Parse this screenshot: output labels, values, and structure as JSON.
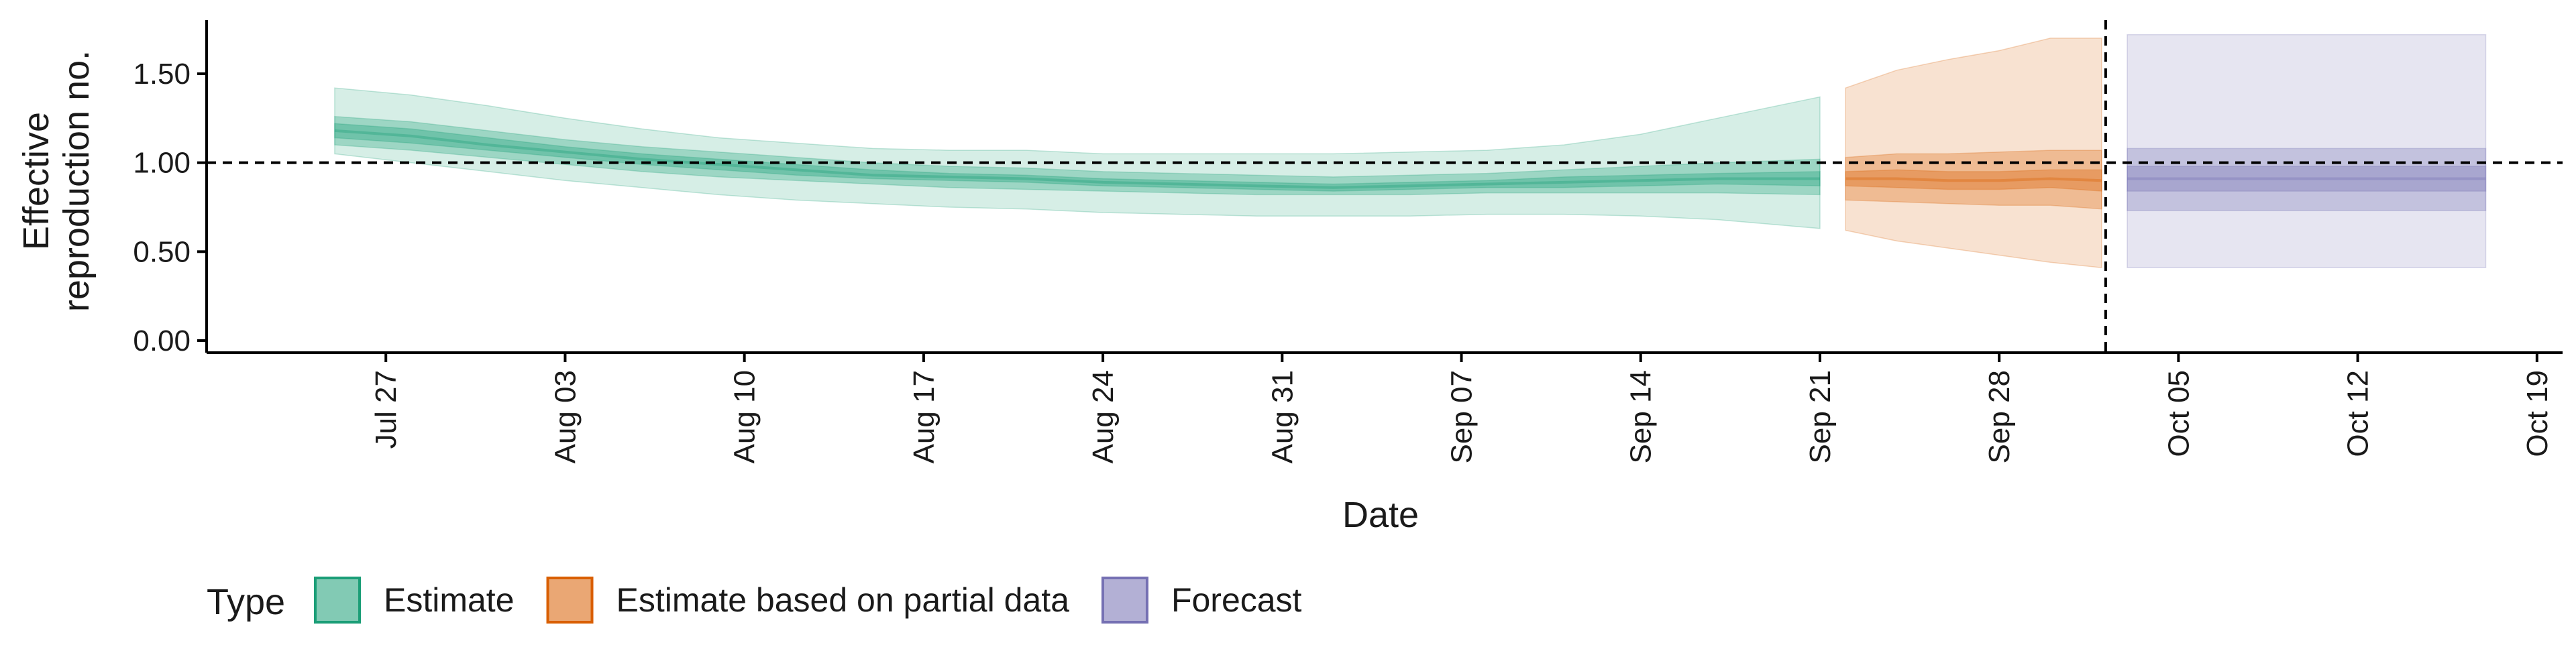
{
  "chart_data": {
    "type": "area",
    "title": "",
    "xlabel": "Date",
    "ylabel": "Effective reproduction no.",
    "ylim": [
      0,
      1.8
    ],
    "y_ticks": [
      "0.00",
      "0.50",
      "1.00",
      "1.50"
    ],
    "x_ticks": [
      {
        "date": "2020-07-27",
        "label": "Jul 27"
      },
      {
        "date": "2020-08-03",
        "label": "Aug 03"
      },
      {
        "date": "2020-08-10",
        "label": "Aug 10"
      },
      {
        "date": "2020-08-17",
        "label": "Aug 17"
      },
      {
        "date": "2020-08-24",
        "label": "Aug 24"
      },
      {
        "date": "2020-08-31",
        "label": "Aug 31"
      },
      {
        "date": "2020-09-07",
        "label": "Sep 07"
      },
      {
        "date": "2020-09-14",
        "label": "Sep 14"
      },
      {
        "date": "2020-09-21",
        "label": "Sep 21"
      },
      {
        "date": "2020-09-28",
        "label": "Sep 28"
      },
      {
        "date": "2020-10-05",
        "label": "Oct 05"
      },
      {
        "date": "2020-10-12",
        "label": "Oct 12"
      },
      {
        "date": "2020-10-19",
        "label": "Oct 19"
      }
    ],
    "reference_line_y": 1.0,
    "forecast_start_date": "2020-10-02",
    "legend": {
      "title": "Type",
      "position": "bottom-left"
    },
    "series": [
      {
        "name": "Estimate",
        "color": "#1b9e77",
        "x": [
          "2020-07-25",
          "2020-07-28",
          "2020-07-31",
          "2020-08-03",
          "2020-08-06",
          "2020-08-09",
          "2020-08-12",
          "2020-08-15",
          "2020-08-18",
          "2020-08-21",
          "2020-08-24",
          "2020-08-27",
          "2020-08-30",
          "2020-09-02",
          "2020-09-05",
          "2020-09-08",
          "2020-09-11",
          "2020-09-14",
          "2020-09-17",
          "2020-09-21"
        ],
        "median": [
          1.18,
          1.15,
          1.1,
          1.06,
          1.02,
          0.99,
          0.96,
          0.93,
          0.92,
          0.91,
          0.89,
          0.88,
          0.87,
          0.86,
          0.87,
          0.88,
          0.89,
          0.9,
          0.91,
          0.91
        ],
        "lower20": [
          1.14,
          1.11,
          1.07,
          1.03,
          0.99,
          0.96,
          0.93,
          0.91,
          0.9,
          0.89,
          0.87,
          0.86,
          0.85,
          0.84,
          0.85,
          0.86,
          0.86,
          0.87,
          0.88,
          0.87
        ],
        "upper20": [
          1.22,
          1.19,
          1.14,
          1.09,
          1.05,
          1.02,
          0.99,
          0.96,
          0.94,
          0.93,
          0.91,
          0.9,
          0.89,
          0.88,
          0.89,
          0.9,
          0.92,
          0.93,
          0.94,
          0.95
        ],
        "lower50": [
          1.1,
          1.07,
          1.03,
          0.99,
          0.95,
          0.92,
          0.9,
          0.88,
          0.86,
          0.85,
          0.84,
          0.83,
          0.82,
          0.82,
          0.82,
          0.83,
          0.83,
          0.83,
          0.83,
          0.82
        ],
        "upper50": [
          1.26,
          1.23,
          1.18,
          1.13,
          1.09,
          1.06,
          1.03,
          1.0,
          0.98,
          0.97,
          0.95,
          0.94,
          0.93,
          0.92,
          0.93,
          0.94,
          0.96,
          0.98,
          1.0,
          1.02
        ],
        "lower90": [
          1.05,
          1.0,
          0.95,
          0.9,
          0.86,
          0.82,
          0.79,
          0.77,
          0.75,
          0.74,
          0.72,
          0.71,
          0.7,
          0.7,
          0.7,
          0.71,
          0.71,
          0.7,
          0.68,
          0.63
        ],
        "upper90": [
          1.42,
          1.38,
          1.32,
          1.25,
          1.19,
          1.14,
          1.11,
          1.08,
          1.07,
          1.07,
          1.05,
          1.05,
          1.05,
          1.05,
          1.06,
          1.07,
          1.1,
          1.16,
          1.25,
          1.37
        ]
      },
      {
        "name": "Estimate based on partial data",
        "color": "#d95f02",
        "x": [
          "2020-09-22",
          "2020-09-24",
          "2020-09-26",
          "2020-09-28",
          "2020-09-30",
          "2020-10-02"
        ],
        "median": [
          0.91,
          0.91,
          0.9,
          0.9,
          0.91,
          0.9
        ],
        "lower20": [
          0.87,
          0.86,
          0.85,
          0.85,
          0.86,
          0.84
        ],
        "upper20": [
          0.95,
          0.96,
          0.95,
          0.95,
          0.96,
          0.96
        ],
        "lower50": [
          0.79,
          0.78,
          0.77,
          0.76,
          0.76,
          0.74
        ],
        "upper50": [
          1.03,
          1.05,
          1.05,
          1.06,
          1.07,
          1.07
        ],
        "lower90": [
          0.62,
          0.56,
          0.52,
          0.48,
          0.44,
          0.41
        ],
        "upper90": [
          1.42,
          1.52,
          1.58,
          1.63,
          1.7,
          1.7
        ]
      },
      {
        "name": "Forecast",
        "color": "#7570b3",
        "x": [
          "2020-10-03",
          "2020-10-17"
        ],
        "median": [
          0.91,
          0.91
        ],
        "lower20": [
          0.84,
          0.84
        ],
        "upper20": [
          0.98,
          0.98
        ],
        "lower50": [
          0.73,
          0.73
        ],
        "upper50": [
          1.08,
          1.08
        ],
        "lower90": [
          0.41,
          0.41
        ],
        "upper90": [
          1.72,
          1.72
        ]
      }
    ]
  }
}
